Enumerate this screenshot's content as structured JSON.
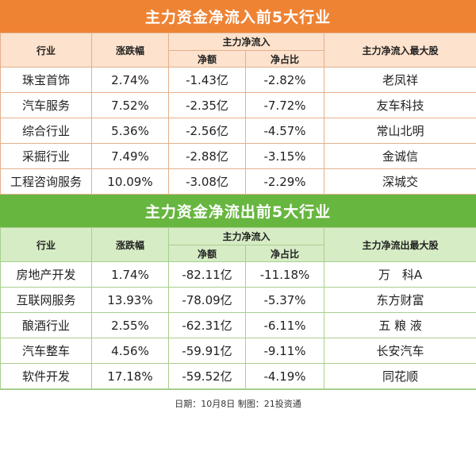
{
  "inflow": {
    "title": "主力资金净流入前5大行业",
    "headers": {
      "industry": "行业",
      "change": "涨跌幅",
      "net_flow_group": "主力净流入",
      "net_amount": "净额",
      "net_ratio": "净占比",
      "top_stock": "主力净流入最大股"
    },
    "rows": [
      {
        "industry": "珠宝首饰",
        "change": "2.74%",
        "amount": "-1.43亿",
        "ratio": "-2.82%",
        "stock": "老凤祥"
      },
      {
        "industry": "汽车服务",
        "change": "7.52%",
        "amount": "-2.35亿",
        "ratio": "-7.72%",
        "stock": "友车科技"
      },
      {
        "industry": "综合行业",
        "change": "5.36%",
        "amount": "-2.56亿",
        "ratio": "-4.57%",
        "stock": "常山北明"
      },
      {
        "industry": "采掘行业",
        "change": "7.49%",
        "amount": "-2.88亿",
        "ratio": "-3.15%",
        "stock": "金诚信"
      },
      {
        "industry": "工程咨询服务",
        "change": "10.09%",
        "amount": "-3.08亿",
        "ratio": "-2.29%",
        "stock": "深城交"
      }
    ]
  },
  "outflow": {
    "title": "主力资金净流出前5大行业",
    "headers": {
      "industry": "行业",
      "change": "涨跌幅",
      "net_flow_group": "主力净流入",
      "net_amount": "净额",
      "net_ratio": "净占比",
      "top_stock": "主力净流出最大股"
    },
    "rows": [
      {
        "industry": "房地产开发",
        "change": "1.74%",
        "amount": "-82.11亿",
        "ratio": "-11.18%",
        "stock": "万　科A"
      },
      {
        "industry": "互联网服务",
        "change": "13.93%",
        "amount": "-78.09亿",
        "ratio": "-5.37%",
        "stock": "东方财富"
      },
      {
        "industry": "酿酒行业",
        "change": "2.55%",
        "amount": "-62.31亿",
        "ratio": "-6.11%",
        "stock": "五 粮 液"
      },
      {
        "industry": "汽车整车",
        "change": "4.56%",
        "amount": "-59.91亿",
        "ratio": "-9.11%",
        "stock": "长安汽车"
      },
      {
        "industry": "软件开发",
        "change": "17.18%",
        "amount": "-59.52亿",
        "ratio": "-4.19%",
        "stock": "同花顺"
      }
    ]
  },
  "footer": "日期：10月8日 制图：21投资通",
  "colors": {
    "inflow_banner": "#ee8334",
    "outflow_banner": "#67b640"
  }
}
